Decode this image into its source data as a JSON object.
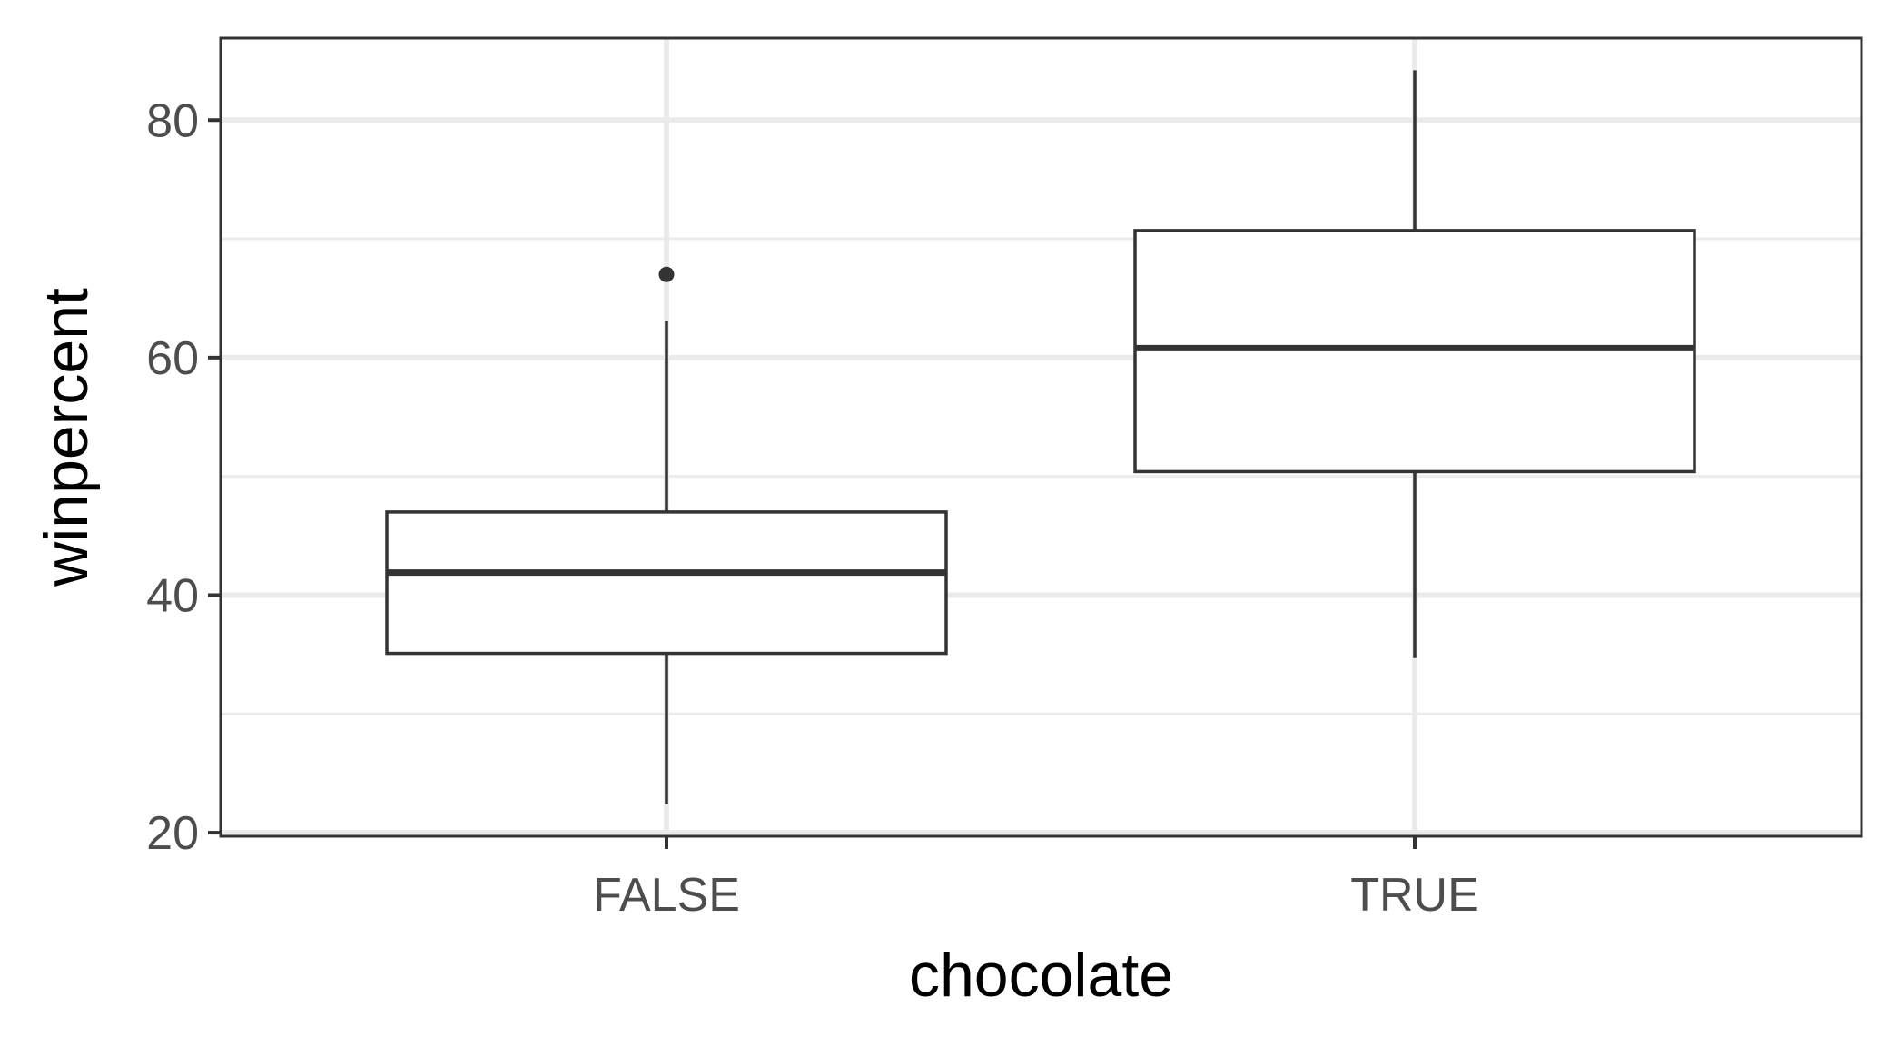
{
  "chart_data": {
    "type": "boxplot",
    "xlabel": "chocolate",
    "ylabel": "winpercent",
    "categories": [
      "FALSE",
      "TRUE"
    ],
    "boxes": [
      {
        "category": "FALSE",
        "whisker_low": 22.4,
        "q1": 35.1,
        "median": 41.9,
        "q3": 47.0,
        "whisker_high": 63.1,
        "outliers": [
          67.0
        ]
      },
      {
        "category": "TRUE",
        "whisker_low": 34.7,
        "q1": 50.4,
        "median": 60.8,
        "q3": 70.7,
        "whisker_high": 84.2,
        "outliers": []
      }
    ],
    "ylim": [
      19.7,
      86.9
    ],
    "y_ticks": [
      20,
      40,
      60,
      80
    ],
    "y_minor_ticks": [
      30,
      50,
      70
    ],
    "grid": true,
    "theme": "bw",
    "colors": {
      "grid": "#ebebeb",
      "panel_border": "#333333",
      "box_line": "#333333",
      "box_fill": "#ffffff",
      "tick_label": "#4d4d4d",
      "axis_title": "#000000"
    }
  }
}
